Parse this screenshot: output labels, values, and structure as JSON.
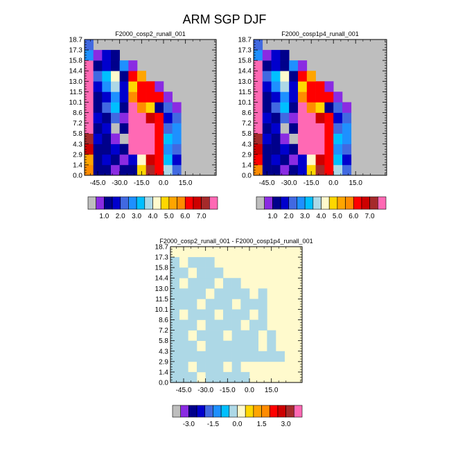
{
  "title": "ARM SGP DJF",
  "panels": [
    {
      "title": "F2000_cosp2_runall_001",
      "ylabels": [
        "0.0",
        "1.4",
        "2.9",
        "4.3",
        "5.8",
        "7.2",
        "8.6",
        "10.1",
        "11.5",
        "13.0",
        "14.4",
        "15.8",
        "17.3",
        "18.7"
      ],
      "xlabels": [
        "-45.0",
        "-30.0",
        "-15.0",
        "0.0",
        "15.0"
      ]
    },
    {
      "title": "F2000_cosp1p4_runall_001",
      "ylabels": [
        "0.0",
        "1.4",
        "2.9",
        "4.3",
        "5.8",
        "7.2",
        "8.6",
        "10.1",
        "11.5",
        "13.0",
        "14.4",
        "15.8",
        "17.3",
        "18.7"
      ],
      "xlabels": [
        "-45.0",
        "-30.0",
        "-15.0",
        "0.0",
        "15.0"
      ]
    },
    {
      "title": "F2000_cosp2_runall_001 - F2000_cosp1p4_runall_001",
      "ylabels": [
        "0.0",
        "1.4",
        "2.9",
        "4.3",
        "5.8",
        "7.2",
        "8.6",
        "10.1",
        "11.5",
        "13.0",
        "14.4",
        "15.8",
        "17.3",
        "18.7"
      ],
      "xlabels": [
        "-45.0",
        "-30.0",
        "-15.0",
        "0.0",
        "15.0"
      ]
    }
  ],
  "colorbars": [
    {
      "colors": [
        "#bebebe",
        "#8a2be2",
        "#00008b",
        "#0000cd",
        "#4169e1",
        "#1e90ff",
        "#00bfff",
        "#add8e6",
        "#fffacd",
        "#ffd700",
        "#ffa500",
        "#ff8c00",
        "#ff0000",
        "#cd0000",
        "#a52a2a",
        "#ff69b4"
      ],
      "labels": [
        "1.0",
        "2.0",
        "3.0",
        "4.0",
        "5.0",
        "6.0",
        "7.0"
      ]
    },
    {
      "colors": [
        "#bebebe",
        "#8a2be2",
        "#00008b",
        "#0000cd",
        "#4169e1",
        "#1e90ff",
        "#00bfff",
        "#add8e6",
        "#fffacd",
        "#ffd700",
        "#ffa500",
        "#ff8c00",
        "#ff0000",
        "#cd0000",
        "#a52a2a",
        "#ff69b4"
      ],
      "labels": [
        "1.0",
        "2.0",
        "3.0",
        "4.0",
        "5.0",
        "6.0",
        "7.0"
      ]
    },
    {
      "colors": [
        "#bebebe",
        "#8a2be2",
        "#00008b",
        "#0000cd",
        "#4169e1",
        "#1e90ff",
        "#00bfff",
        "#add8e6",
        "#fffacd",
        "#ffd700",
        "#ffa500",
        "#ff8c00",
        "#ff0000",
        "#cd0000",
        "#a52a2a",
        "#ff69b4"
      ],
      "labels": [
        "-3.0",
        "-1.5",
        "0.0",
        "1.5",
        "3.0"
      ]
    }
  ],
  "chart_data": [
    {
      "type": "heatmap",
      "title": "F2000_cosp2_runall_001",
      "x": [
        -51,
        -45,
        -39,
        -33,
        -27,
        -21,
        -15,
        -9,
        -3,
        3,
        9,
        15,
        21,
        27,
        33
      ],
      "y_levels": [
        "0.0",
        "1.4",
        "2.9",
        "4.3",
        "5.8",
        "7.2",
        "8.6",
        "10.1",
        "11.5",
        "13.0",
        "14.4",
        "15.8",
        "17.3",
        "18.7"
      ],
      "background": "#bebebe",
      "cells": [
        [
          "#ff8c00",
          "#00008b",
          "#00008b",
          "#8a2be2",
          "#00008b",
          "#00008b",
          "#ffd700",
          "#a52a2a",
          "#ff0000",
          "#add8e6",
          "#4169e1",
          null,
          null,
          null,
          null
        ],
        [
          "#ffa500",
          "#00008b",
          "#0000cd",
          "#00008b",
          "#8a2be2",
          "#0000cd",
          "#fffacd",
          "#cd0000",
          "#ff0000",
          "#00bfff",
          "#0000cd",
          null,
          null,
          null,
          null
        ],
        [
          "#cd0000",
          "#00008b",
          "#00008b",
          "#0000cd",
          "#00008b",
          "#ff69b4",
          "#ff69b4",
          "#ff69b4",
          "#ff0000",
          "#1e90ff",
          "#4169e1",
          null,
          null,
          null,
          null
        ],
        [
          "#a52a2a",
          "#0000cd",
          "#00008b",
          "#8a2be2",
          "#bebebe",
          "#ff69b4",
          "#ff69b4",
          "#ff69b4",
          "#ff0000",
          "#00bfff",
          "#1e90ff",
          null,
          null,
          null,
          null
        ],
        [
          "#ff69b4",
          "#00008b",
          "#0000cd",
          "#bebebe",
          "#00008b",
          "#ff69b4",
          "#ff69b4",
          "#ff69b4",
          "#ff0000",
          "#4169e1",
          "#1e90ff",
          null,
          null,
          null,
          null
        ],
        [
          "#ff69b4",
          "#0000cd",
          "#00008b",
          "#4169e1",
          "#8a2be2",
          "#ff69b4",
          "#ff69b4",
          "#cd0000",
          "#ff0000",
          "#0000cd",
          "#4169e1",
          null,
          null,
          null,
          null
        ],
        [
          "#ff69b4",
          "#00008b",
          "#4169e1",
          "#00bfff",
          "#00008b",
          "#ff69b4",
          "#ff8c00",
          "#ffd700",
          "#00008b",
          "#4169e1",
          "#8a2be2",
          null,
          null,
          null,
          null
        ],
        [
          "#ff69b4",
          "#00008b",
          "#0000cd",
          "#1e90ff",
          "#0000cd",
          "#ff8c00",
          "#ff0000",
          "#ff0000",
          "#ff0000",
          "#8a2be2",
          null,
          null,
          null,
          null,
          null
        ],
        [
          "#ff69b4",
          "#0000cd",
          "#1e90ff",
          "#add8e6",
          "#0000cd",
          "#ffd700",
          "#ff0000",
          "#ff0000",
          "#8a2be2",
          null,
          null,
          null,
          null,
          null,
          null
        ],
        [
          "#ff69b4",
          "#4169e1",
          "#00bfff",
          "#fffacd",
          "#00008b",
          "#ff0000",
          "#ffa500",
          null,
          null,
          null,
          null,
          null,
          null,
          null,
          null
        ],
        [
          "#ff69b4",
          "#00008b",
          "#0000cd",
          "#00008b",
          "#1e90ff",
          "#8a2be2",
          null,
          null,
          null,
          null,
          null,
          null,
          null,
          null,
          null
        ],
        [
          "#1e90ff",
          "#8a2be2",
          "#0000cd",
          "#00008b",
          null,
          null,
          null,
          null,
          null,
          null,
          null,
          null,
          null,
          null,
          null
        ],
        [
          "#4169e1",
          null,
          null,
          null,
          null,
          null,
          null,
          null,
          null,
          null,
          null,
          null,
          null,
          null,
          null
        ]
      ]
    },
    {
      "type": "heatmap",
      "title": "F2000_cosp1p4_runall_001",
      "x": [
        -51,
        -45,
        -39,
        -33,
        -27,
        -21,
        -15,
        -9,
        -3,
        3,
        9,
        15,
        21,
        27,
        33
      ],
      "y_levels": [
        "0.0",
        "1.4",
        "2.9",
        "4.3",
        "5.8",
        "7.2",
        "8.6",
        "10.1",
        "11.5",
        "13.0",
        "14.4",
        "15.8",
        "17.3",
        "18.7"
      ],
      "background": "#bebebe",
      "cells": [
        [
          "#ff8c00",
          "#00008b",
          "#00008b",
          "#8a2be2",
          "#00008b",
          "#0000cd",
          "#ffd700",
          "#a52a2a",
          "#ff0000",
          "#add8e6",
          "#4169e1",
          null,
          null,
          null,
          null
        ],
        [
          "#ff0000",
          "#00008b",
          "#0000cd",
          "#00008b",
          "#8a2be2",
          "#0000cd",
          "#fffacd",
          "#cd0000",
          "#ff0000",
          "#00bfff",
          "#0000cd",
          null,
          null,
          null,
          null
        ],
        [
          "#cd0000",
          "#00008b",
          "#00008b",
          "#0000cd",
          "#00008b",
          "#ff69b4",
          "#ff69b4",
          "#ff69b4",
          "#ff0000",
          "#1e90ff",
          "#4169e1",
          null,
          null,
          null,
          null
        ],
        [
          "#a52a2a",
          "#0000cd",
          "#00008b",
          "#8a2be2",
          "#bebebe",
          "#ff69b4",
          "#ff69b4",
          "#ff69b4",
          "#ff0000",
          "#00bfff",
          "#1e90ff",
          null,
          null,
          null,
          null
        ],
        [
          "#ff69b4",
          "#00008b",
          "#0000cd",
          "#bebebe",
          "#00008b",
          "#ff69b4",
          "#ff69b4",
          "#ff69b4",
          "#ff0000",
          "#4169e1",
          "#1e90ff",
          null,
          null,
          null,
          null
        ],
        [
          "#ff69b4",
          "#0000cd",
          "#00008b",
          "#4169e1",
          "#8a2be2",
          "#ff69b4",
          "#ff69b4",
          "#cd0000",
          "#ff0000",
          "#0000cd",
          "#4169e1",
          null,
          null,
          null,
          null
        ],
        [
          "#ff69b4",
          "#00008b",
          "#4169e1",
          "#00bfff",
          "#00008b",
          "#ff69b4",
          "#ff8c00",
          "#ffd700",
          "#00008b",
          "#4169e1",
          "#8a2be2",
          null,
          null,
          null,
          null
        ],
        [
          "#ff69b4",
          "#00008b",
          "#0000cd",
          "#1e90ff",
          "#0000cd",
          "#ff8c00",
          "#ff0000",
          "#ff0000",
          "#ff0000",
          "#8a2be2",
          null,
          null,
          null,
          null,
          null
        ],
        [
          "#ff69b4",
          "#0000cd",
          "#1e90ff",
          "#add8e6",
          "#0000cd",
          "#ffd700",
          "#ff0000",
          "#ff0000",
          "#8a2be2",
          null,
          null,
          null,
          null,
          null,
          null
        ],
        [
          "#ff69b4",
          "#4169e1",
          "#00bfff",
          "#fffacd",
          "#00008b",
          "#ff0000",
          "#ffa500",
          null,
          null,
          null,
          null,
          null,
          null,
          null,
          null
        ],
        [
          "#ff69b4",
          "#00008b",
          "#0000cd",
          "#00008b",
          "#1e90ff",
          "#8a2be2",
          null,
          null,
          null,
          null,
          null,
          null,
          null,
          null,
          null
        ],
        [
          "#1e90ff",
          "#8a2be2",
          "#0000cd",
          "#00008b",
          null,
          null,
          null,
          null,
          null,
          null,
          null,
          null,
          null,
          null,
          null
        ],
        [
          "#4169e1",
          null,
          null,
          null,
          null,
          null,
          null,
          null,
          null,
          null,
          null,
          null,
          null,
          null,
          null
        ]
      ]
    },
    {
      "type": "heatmap",
      "title": "F2000_cosp2_runall_001 - F2000_cosp1p4_runall_001",
      "x": [
        -51,
        -45,
        -39,
        -33,
        -27,
        -21,
        -15,
        -9,
        -3,
        3,
        9,
        15,
        21,
        27,
        33
      ],
      "y_levels": [
        "0.0",
        "1.4",
        "2.9",
        "4.3",
        "5.8",
        "7.2",
        "8.6",
        "10.1",
        "11.5",
        "13.0",
        "14.4",
        "15.8",
        "17.3",
        "18.7"
      ],
      "background": "#fffacd",
      "cells": [
        [
          1,
          1,
          1,
          0,
          1,
          1,
          1,
          1,
          1,
          0,
          0,
          0,
          0,
          0,
          0
        ],
        [
          1,
          1,
          0,
          1,
          1,
          1,
          0,
          1,
          0,
          0,
          0,
          0,
          0,
          0,
          0
        ],
        [
          1,
          1,
          1,
          1,
          1,
          1,
          1,
          1,
          1,
          1,
          1,
          1,
          1,
          0,
          0
        ],
        [
          1,
          1,
          1,
          0,
          1,
          1,
          1,
          1,
          1,
          1,
          0,
          1,
          0,
          0,
          0
        ],
        [
          1,
          1,
          0,
          1,
          1,
          1,
          0,
          1,
          1,
          1,
          0,
          1,
          0,
          0,
          0
        ],
        [
          1,
          1,
          1,
          0,
          1,
          1,
          1,
          1,
          0,
          1,
          1,
          0,
          0,
          0,
          0
        ],
        [
          1,
          0,
          1,
          1,
          1,
          0,
          1,
          1,
          1,
          0,
          1,
          0,
          0,
          0,
          0
        ],
        [
          1,
          1,
          1,
          0,
          1,
          1,
          1,
          0,
          1,
          1,
          1,
          0,
          0,
          0,
          0
        ],
        [
          1,
          1,
          1,
          1,
          0,
          1,
          1,
          1,
          1,
          0,
          1,
          0,
          0,
          0,
          0
        ],
        [
          1,
          0,
          1,
          1,
          1,
          0,
          1,
          1,
          0,
          0,
          0,
          0,
          0,
          0,
          0
        ],
        [
          1,
          1,
          0,
          1,
          1,
          1,
          0,
          0,
          0,
          0,
          0,
          0,
          0,
          0,
          0
        ],
        [
          1,
          0,
          1,
          1,
          1,
          0,
          0,
          0,
          0,
          0,
          0,
          0,
          0,
          0,
          0
        ],
        [
          0,
          0,
          0,
          0,
          0,
          0,
          0,
          0,
          0,
          0,
          0,
          0,
          0,
          0,
          0
        ]
      ],
      "cell_colors": {
        "0": "#fffacd",
        "1": "#add8e6"
      }
    }
  ]
}
